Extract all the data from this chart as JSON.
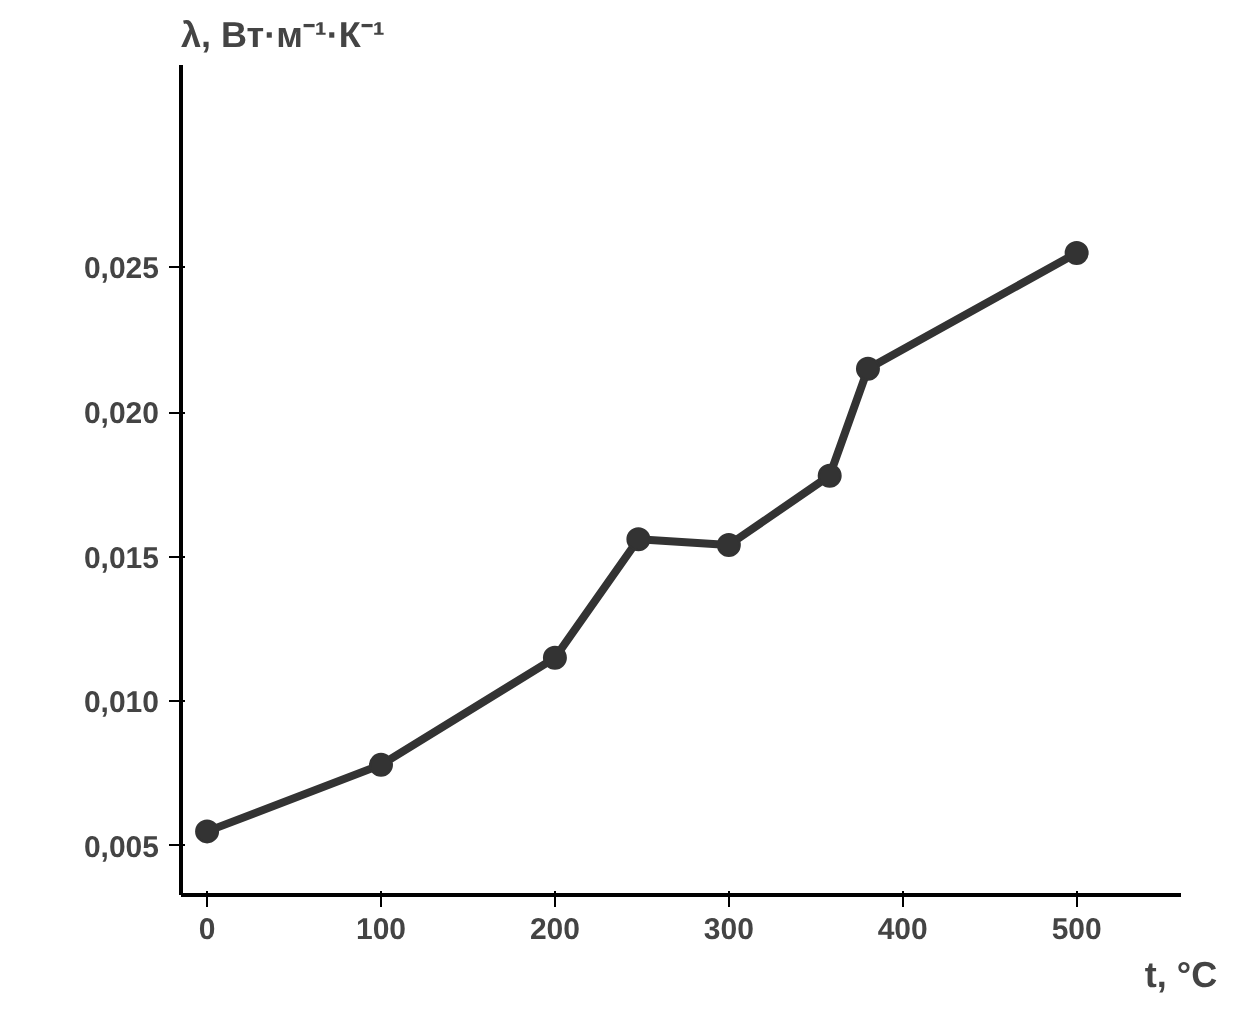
{
  "chart_data": {
    "type": "line",
    "title": "λ, Вт·м⁻¹·К⁻¹",
    "xlabel": "t, °C",
    "x": [
      0,
      100,
      200,
      248,
      300,
      358,
      380,
      500
    ],
    "series": [
      {
        "color": "#333333",
        "values": [
          0.0055,
          0.0078,
          0.0115,
          0.0156,
          0.0154,
          0.0178,
          0.0215,
          0.0255
        ]
      }
    ],
    "xlim": [
      -15,
      560
    ],
    "ylim": [
      0.0033,
      0.032
    ],
    "xticks": [
      0,
      100,
      200,
      300,
      400,
      500
    ],
    "yticks": [
      {
        "value": 0.005,
        "label": "0,005"
      },
      {
        "value": 0.01,
        "label": "0,010"
      },
      {
        "value": 0.015,
        "label": "0,015"
      },
      {
        "value": 0.02,
        "label": "0,020"
      },
      {
        "value": 0.025,
        "label": "0,025"
      }
    ],
    "marker": "circle",
    "line_style": "solid"
  }
}
